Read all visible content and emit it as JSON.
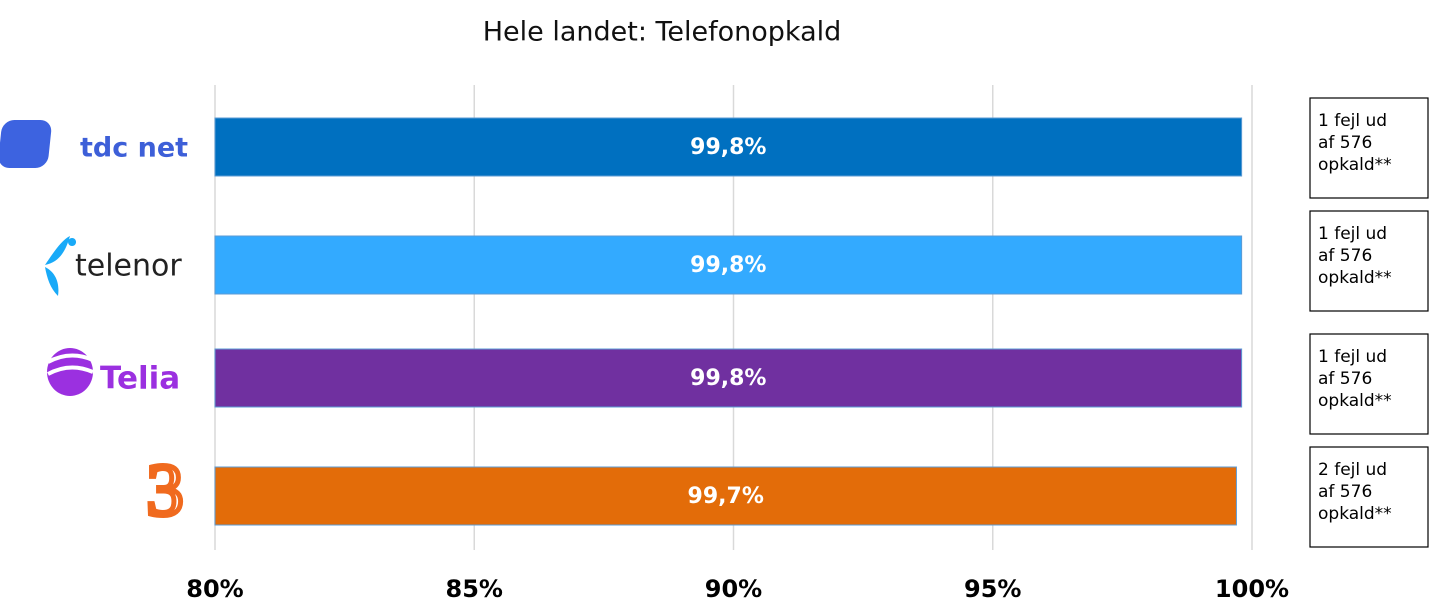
{
  "chart_data": {
    "type": "bar",
    "orientation": "horizontal",
    "title": "Hele landet: Telefonopkald",
    "categories": [
      "tdc net",
      "telenor",
      "Telia",
      "3"
    ],
    "values": [
      99.8,
      99.8,
      99.8,
      99.7
    ],
    "value_labels": [
      "99,8%",
      "99,8%",
      "99,8%",
      "99,7%"
    ],
    "colors": [
      "#0070c0",
      "#33aaff",
      "#7030a0",
      "#e36c09"
    ],
    "xlim": [
      80,
      100
    ],
    "xticks": [
      {
        "value": 80,
        "label": "80%"
      },
      {
        "value": 85,
        "label": "85%"
      },
      {
        "value": 90,
        "label": "90%"
      },
      {
        "value": 95,
        "label": "95%"
      },
      {
        "value": 100,
        "label": "100%"
      }
    ],
    "grid": true,
    "annotations": [
      [
        "1 fejl ud",
        "af 576",
        "opkald**"
      ],
      [
        "1 fejl ud",
        "af 576",
        "opkald**"
      ],
      [
        "1 fejl ud",
        "af 576",
        "opkald**"
      ],
      [
        "2 fejl ud",
        "af 576",
        "opkald**"
      ]
    ]
  }
}
